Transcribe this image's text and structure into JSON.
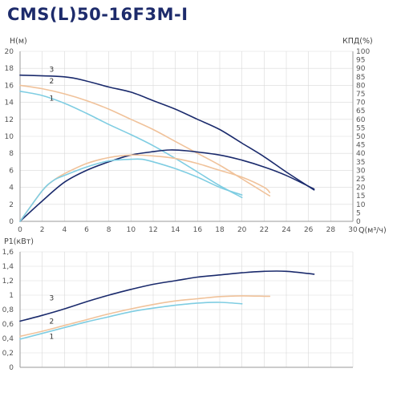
{
  "title": "CMS(L)50-16F3M-I",
  "colors": {
    "curve_3": "#1a2a6c",
    "curve_2": "#f0c29a",
    "curve_1": "#7fcde2",
    "grid": "#d9d9d9",
    "axis": "#9a9a9a"
  },
  "chart_data": [
    {
      "type": "line",
      "name": "head-efficiency",
      "xlabel": "Q(м³/ч)",
      "ylabel": "H(м)",
      "y2label": "КПД(%)",
      "xlim": [
        0,
        30
      ],
      "ylim": [
        0,
        20
      ],
      "y2lim": [
        0,
        100
      ],
      "x_ticks": [
        0,
        2,
        4,
        6,
        8,
        10,
        12,
        14,
        16,
        18,
        20,
        22,
        24,
        26,
        28,
        30
      ],
      "y_ticks": [
        0,
        2,
        4,
        6,
        8,
        10,
        12,
        14,
        16,
        18,
        20
      ],
      "y2_ticks": [
        0,
        5,
        10,
        15,
        20,
        25,
        30,
        35,
        40,
        45,
        50,
        55,
        60,
        65,
        70,
        75,
        80,
        85,
        90,
        95,
        100
      ],
      "grid": true,
      "series": [
        {
          "name": "3",
          "kind": "head",
          "axis": "left",
          "color": "#1a2a6c",
          "x": [
            0,
            4,
            6,
            8,
            10,
            12,
            14,
            16,
            18,
            20,
            22,
            24,
            26.5
          ],
          "y": [
            17.2,
            17.0,
            16.5,
            15.8,
            15.2,
            14.2,
            13.2,
            12.0,
            10.8,
            9.2,
            7.6,
            5.8,
            3.7
          ]
        },
        {
          "name": "2",
          "kind": "head",
          "axis": "left",
          "color": "#f0c29a",
          "x": [
            0,
            2,
            4,
            6,
            8,
            10,
            12,
            14,
            16,
            18,
            20,
            22,
            22.5
          ],
          "y": [
            16.0,
            15.6,
            15.0,
            14.2,
            13.2,
            12.0,
            10.8,
            9.4,
            8.0,
            6.6,
            5.0,
            3.4,
            3.0
          ]
        },
        {
          "name": "1",
          "kind": "head",
          "axis": "left",
          "color": "#7fcde2",
          "x": [
            0,
            2,
            4,
            6,
            8,
            10,
            12,
            14,
            16,
            18,
            20
          ],
          "y": [
            15.3,
            14.8,
            13.9,
            12.7,
            11.4,
            10.2,
            8.9,
            7.4,
            5.8,
            4.2,
            2.8
          ]
        },
        {
          "name": "3",
          "kind": "efficiency",
          "axis": "right",
          "color": "#1a2a6c",
          "x": [
            0,
            2,
            4,
            6,
            8,
            10,
            12,
            13.5,
            15,
            18,
            20,
            22,
            24,
            26.5
          ],
          "y": [
            0,
            12,
            23,
            30,
            35,
            39,
            41,
            42,
            41.5,
            39,
            36,
            32,
            27,
            19
          ]
        },
        {
          "name": "2",
          "kind": "efficiency",
          "axis": "right",
          "color": "#f0c29a",
          "x": [
            0,
            2,
            3,
            4,
            6,
            8,
            10,
            12,
            14,
            16,
            18,
            20,
            22,
            22.5
          ],
          "y": [
            0,
            18,
            24,
            28,
            34,
            37.5,
            39,
            38.5,
            37,
            34,
            30,
            26,
            20,
            17
          ]
        },
        {
          "name": "1",
          "kind": "efficiency",
          "axis": "right",
          "color": "#7fcde2",
          "x": [
            0,
            2,
            3,
            4,
            6,
            8,
            10,
            11,
            12,
            14,
            16,
            18,
            20
          ],
          "y": [
            0,
            18,
            24,
            27,
            32,
            35.5,
            36.5,
            36.5,
            35,
            31,
            26,
            20,
            15.5
          ]
        }
      ],
      "curve_labels": [
        {
          "text": "3",
          "x": 3,
          "y": 17.9
        },
        {
          "text": "2",
          "x": 3,
          "y": 16.5
        },
        {
          "text": "1",
          "x": 3,
          "y": 14.5
        }
      ]
    },
    {
      "type": "line",
      "name": "power",
      "ylabel": "P1(кВт)",
      "xlim": [
        0,
        30
      ],
      "ylim": [
        0,
        1.6
      ],
      "y_ticks": [
        "0",
        "0,2",
        "0,4",
        "0,6",
        "0,8",
        "1",
        "1,2",
        "1,4",
        "1,6"
      ],
      "grid": true,
      "series": [
        {
          "name": "3",
          "color": "#1a2a6c",
          "x": [
            0,
            2,
            4,
            6,
            8,
            10,
            12,
            14,
            16,
            18,
            20,
            22,
            24,
            26.5
          ],
          "y": [
            0.64,
            0.72,
            0.81,
            0.91,
            1.0,
            1.08,
            1.15,
            1.2,
            1.25,
            1.28,
            1.31,
            1.33,
            1.33,
            1.29
          ]
        },
        {
          "name": "2",
          "color": "#f0c29a",
          "x": [
            0,
            2,
            4,
            6,
            8,
            10,
            12,
            14,
            16,
            18,
            20,
            22,
            22.5
          ],
          "y": [
            0.43,
            0.5,
            0.58,
            0.66,
            0.74,
            0.81,
            0.87,
            0.92,
            0.95,
            0.98,
            0.99,
            0.985,
            0.985
          ]
        },
        {
          "name": "1",
          "color": "#7fcde2",
          "x": [
            0,
            2,
            4,
            6,
            8,
            10,
            12,
            14,
            16,
            18,
            20
          ],
          "y": [
            0.39,
            0.47,
            0.55,
            0.63,
            0.7,
            0.77,
            0.82,
            0.86,
            0.89,
            0.9,
            0.88
          ]
        }
      ],
      "curve_labels": [
        {
          "text": "3",
          "x": 3,
          "y": 0.96
        },
        {
          "text": "2",
          "x": 3,
          "y": 0.64
        },
        {
          "text": "1",
          "x": 3,
          "y": 0.43
        }
      ]
    }
  ]
}
